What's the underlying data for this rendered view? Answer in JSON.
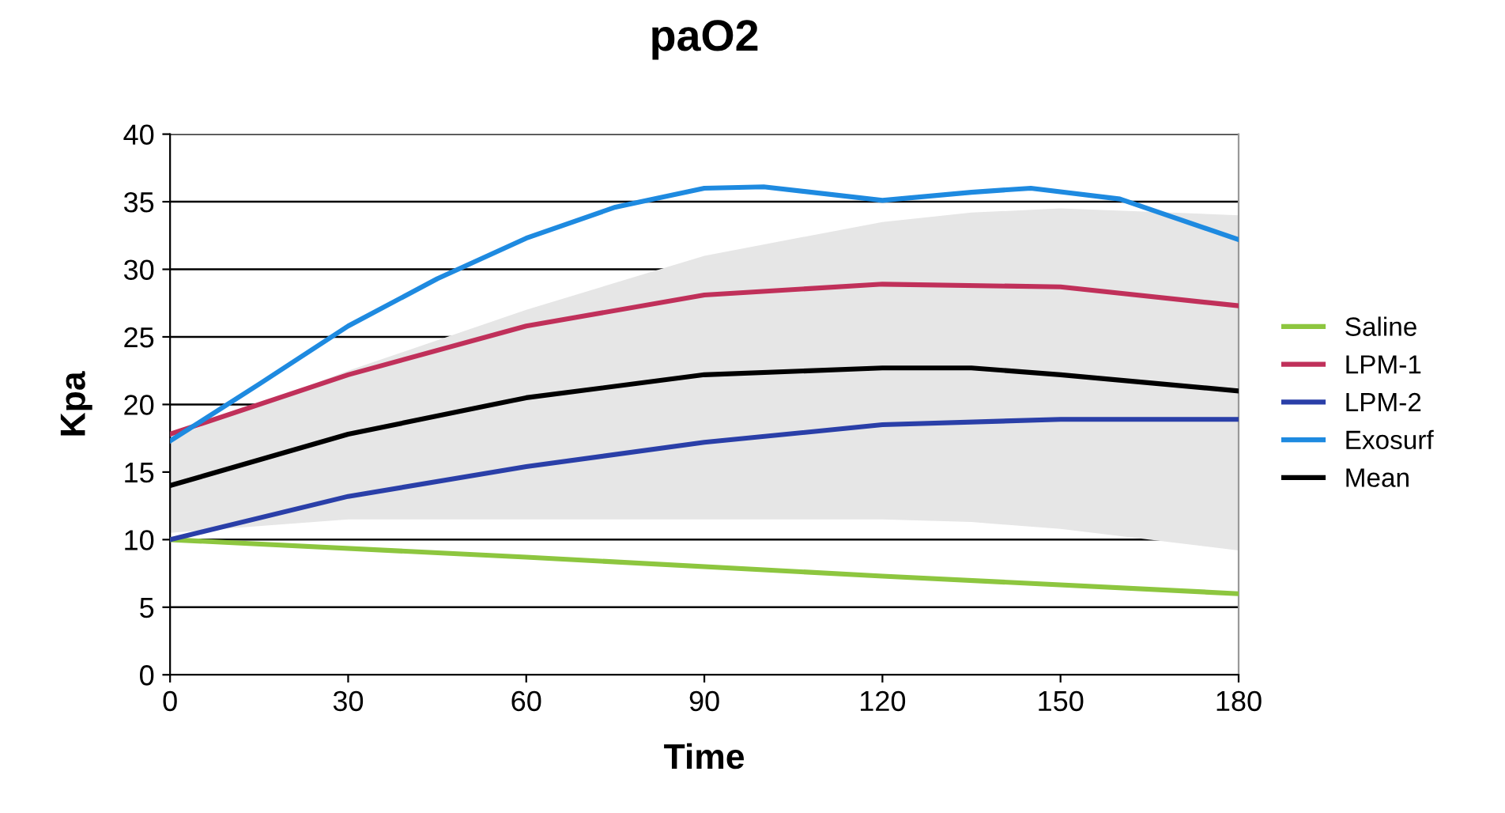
{
  "chart_data": {
    "type": "line",
    "title": "paO2",
    "xlabel": "Time",
    "ylabel": "Kpa",
    "xlim": [
      0,
      180
    ],
    "xticks": [
      0,
      30,
      60,
      90,
      120,
      150,
      180
    ],
    "ylim": [
      0,
      40
    ],
    "yticks": [
      0,
      5,
      10,
      15,
      20,
      25,
      30,
      35,
      40
    ],
    "grid": "y",
    "legend": "right",
    "marker": "none",
    "line_style": "solid",
    "series": [
      {
        "name": "Saline",
        "color": "#8dc63f",
        "x": [
          0,
          60,
          120,
          180
        ],
        "values": [
          10,
          8.7,
          7.3,
          6
        ]
      },
      {
        "name": "LPM-1",
        "color": "#c0305a",
        "x": [
          0,
          30,
          60,
          90,
          120,
          150,
          180
        ],
        "values": [
          17.8,
          22.2,
          25.8,
          28.1,
          28.9,
          28.7,
          27.3
        ]
      },
      {
        "name": "LPM-2",
        "color": "#2a3fa8",
        "x": [
          0,
          30,
          60,
          90,
          120,
          150,
          180
        ],
        "values": [
          10,
          13.2,
          15.4,
          17.2,
          18.5,
          18.9,
          18.9
        ]
      },
      {
        "name": "Exosurf",
        "color": "#1e8ae0",
        "x": [
          0,
          15,
          30,
          45,
          60,
          75,
          90,
          100,
          120,
          135,
          145,
          160,
          180
        ],
        "values": [
          17.3,
          21.5,
          25.8,
          29.3,
          32.3,
          34.6,
          36,
          36.1,
          35.1,
          35.7,
          36,
          35.2,
          32.2
        ]
      },
      {
        "name": "Mean",
        "color": "#000000",
        "x": [
          0,
          30,
          60,
          90,
          120,
          135,
          150,
          180
        ],
        "values": [
          14,
          17.8,
          20.5,
          22.2,
          22.7,
          22.7,
          22.2,
          21
        ],
        "lower": [
          10.5,
          11.5,
          11.5,
          11.5,
          11.5,
          11.3,
          10.8,
          9.2
        ],
        "upper": [
          17.5,
          22.5,
          27,
          31,
          33.5,
          34.2,
          34.5,
          34
        ]
      }
    ]
  }
}
